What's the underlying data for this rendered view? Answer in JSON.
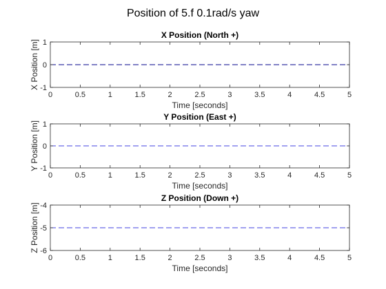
{
  "figure": {
    "title": "Position of 5.f 0.1rad/s yaw"
  },
  "chart_data": [
    {
      "type": "line",
      "title": "X Position (North +)",
      "xlabel": "Time [seconds]",
      "ylabel": "X Position [m]",
      "xlim": [
        0,
        5
      ],
      "ylim": [
        -1,
        1
      ],
      "xticks": [
        "0",
        "0.5",
        "1",
        "1.5",
        "2",
        "2.5",
        "3",
        "3.5",
        "4",
        "4.5",
        "5"
      ],
      "yticks": [
        "-1",
        "0",
        "1"
      ],
      "grid": false,
      "series": [
        {
          "x": [
            0,
            5
          ],
          "y": [
            0,
            0
          ],
          "color": "#00008b",
          "linestyle": "dashed"
        }
      ]
    },
    {
      "type": "line",
      "title": "Y Position (East +)",
      "xlabel": "Time [seconds]",
      "ylabel": "Y Position [m]",
      "xlim": [
        0,
        5
      ],
      "ylim": [
        -1,
        1
      ],
      "xticks": [
        "0",
        "0.5",
        "1",
        "1.5",
        "2",
        "2.5",
        "3",
        "3.5",
        "4",
        "4.5",
        "5"
      ],
      "yticks": [
        "-1",
        "0",
        "1"
      ],
      "grid": false,
      "series": [
        {
          "x": [
            0,
            5
          ],
          "y": [
            0,
            0
          ],
          "color": "#4040e0",
          "linestyle": "dashed"
        }
      ]
    },
    {
      "type": "line",
      "title": "Z Position (Down +)",
      "xlabel": "Time [seconds]",
      "ylabel": "Z Position [m]",
      "xlim": [
        0,
        5
      ],
      "ylim": [
        -6,
        -4
      ],
      "xticks": [
        "0",
        "0.5",
        "1",
        "1.5",
        "2",
        "2.5",
        "3",
        "3.5",
        "4",
        "4.5",
        "5"
      ],
      "yticks": [
        "-6",
        "-5",
        "-4"
      ],
      "grid": false,
      "series": [
        {
          "x": [
            0,
            5
          ],
          "y": [
            -5,
            -5
          ],
          "color": "#4040e0",
          "linestyle": "dashed"
        }
      ]
    }
  ]
}
